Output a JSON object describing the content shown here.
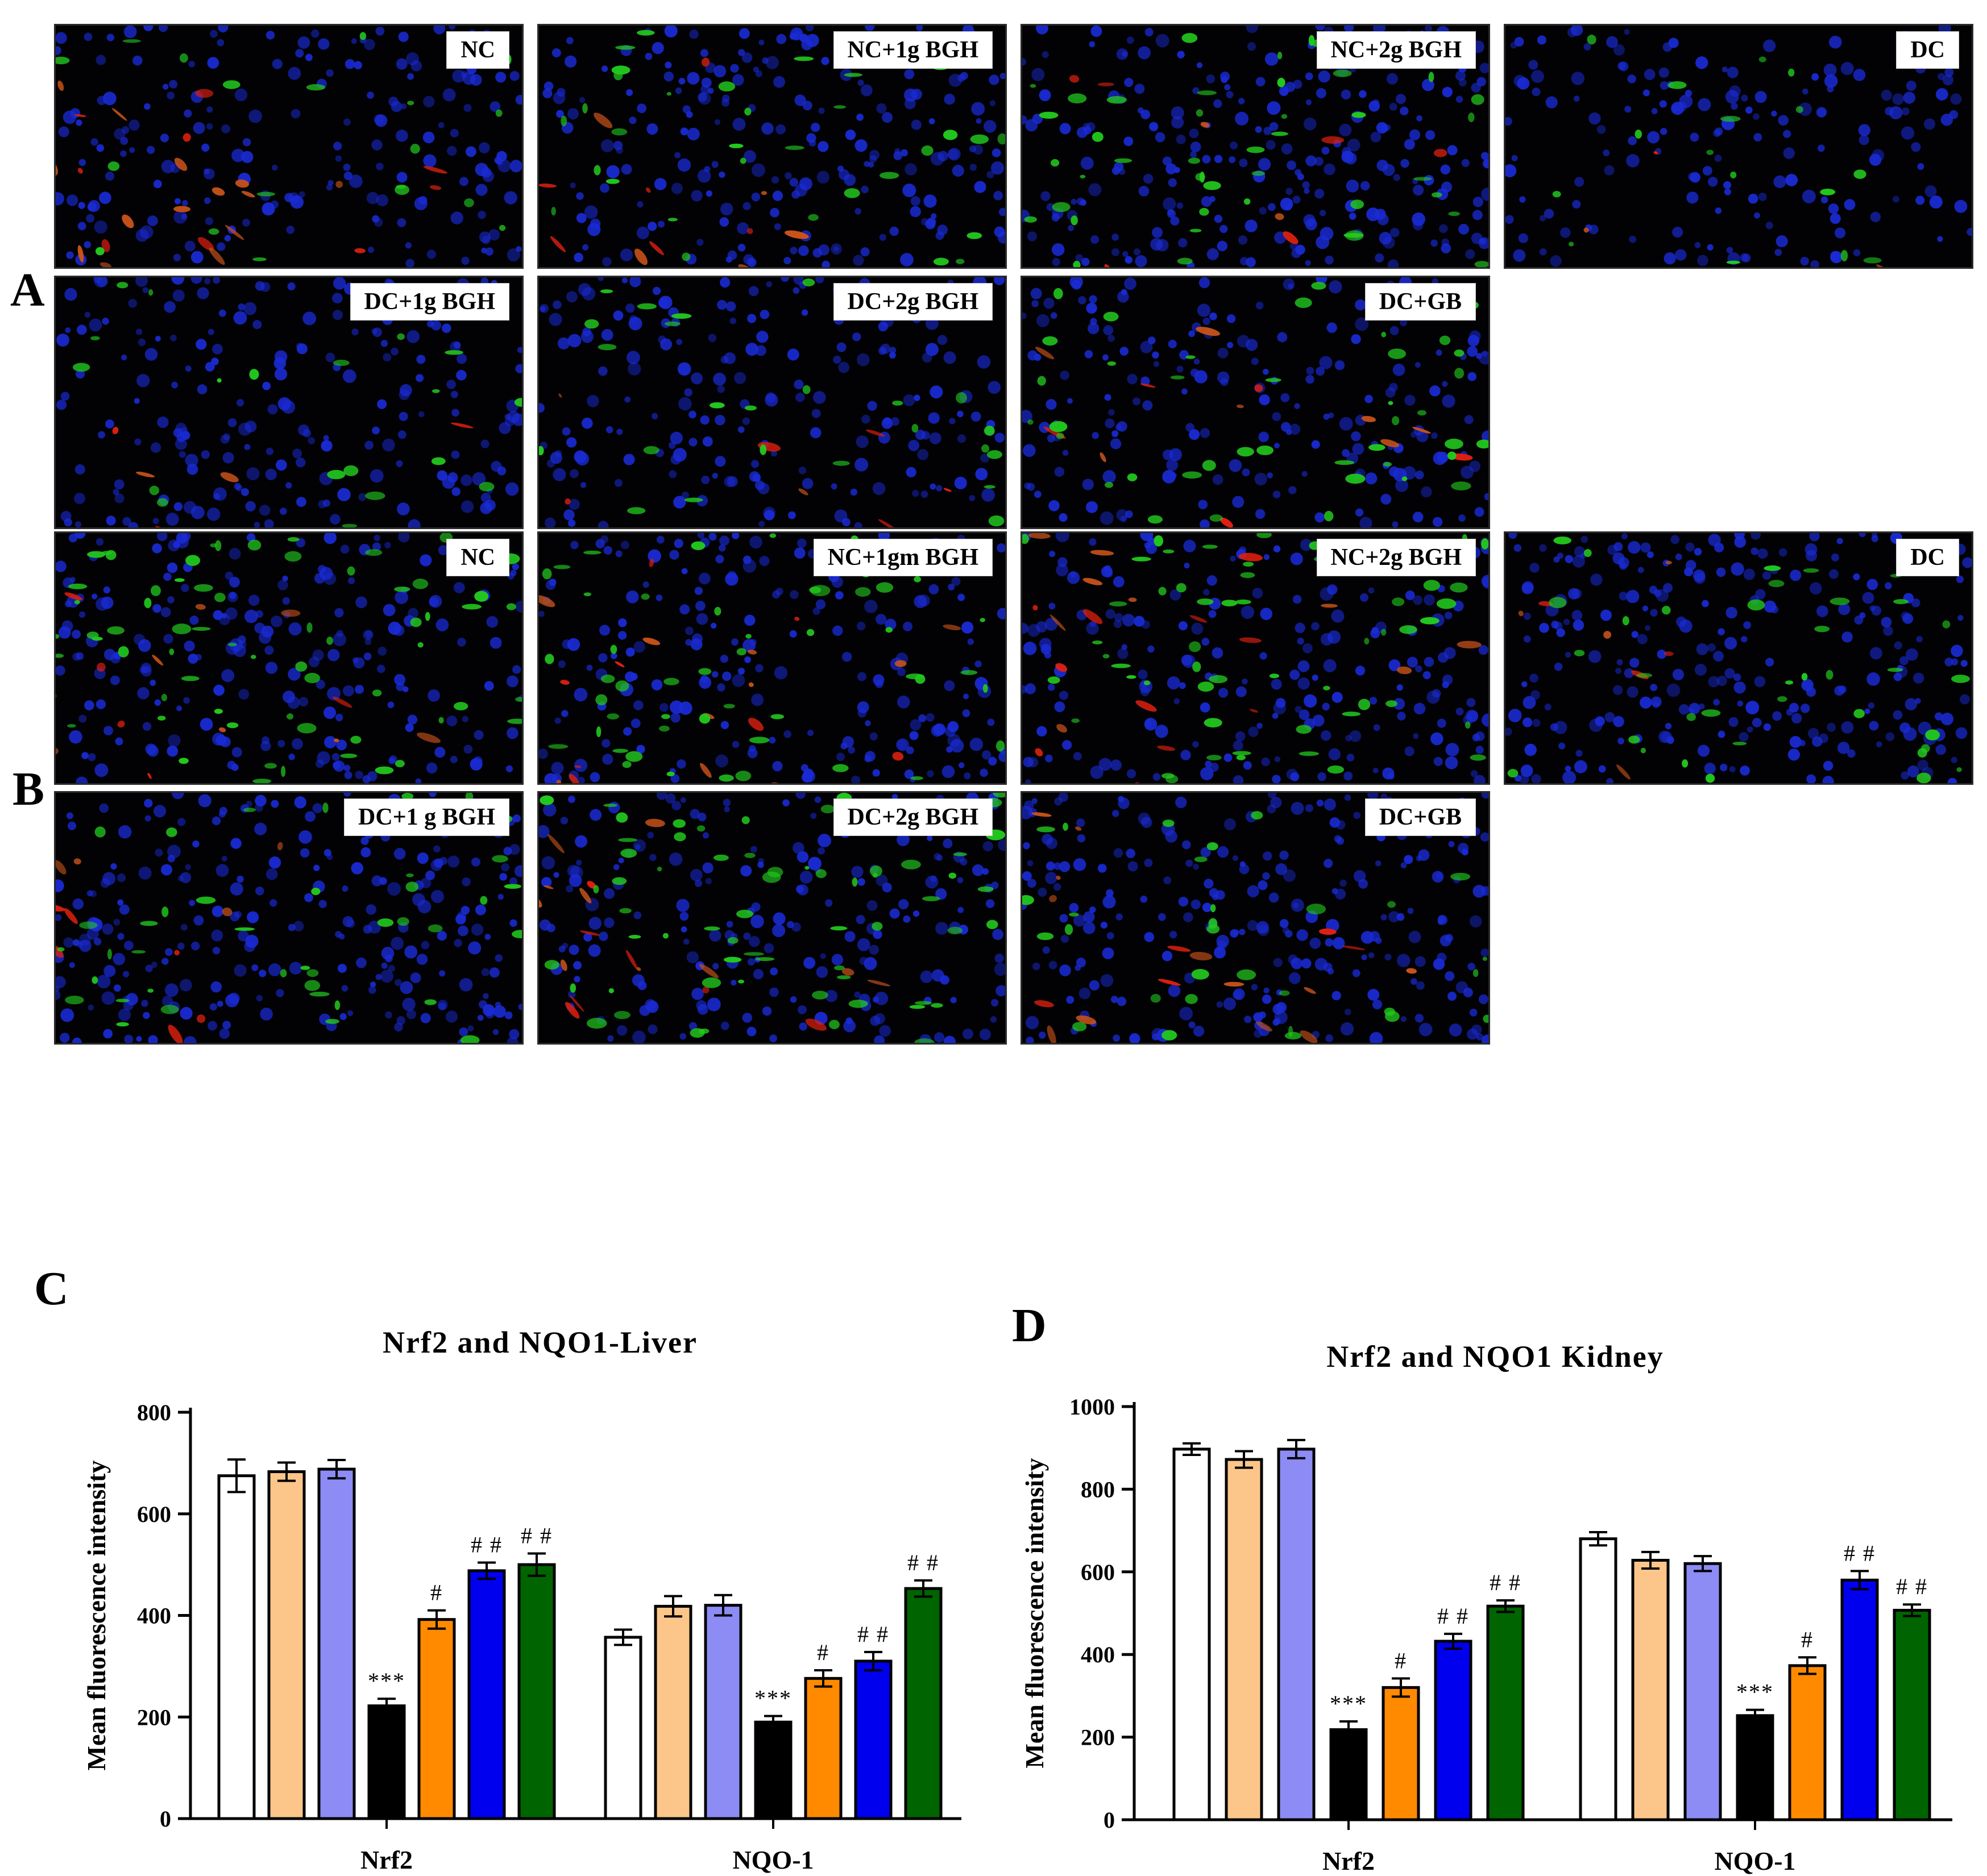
{
  "panels": {
    "A": "A",
    "B": "B",
    "C": "C",
    "D": "D"
  },
  "microscopy": {
    "A": [
      {
        "label": "NC",
        "r": 0.55,
        "g": 0.15,
        "b": 0.5
      },
      {
        "label": "NC+1g  BGH",
        "r": 0.45,
        "g": 0.35,
        "b": 0.6
      },
      {
        "label": "NC+2g  BGH",
        "r": 0.3,
        "g": 0.45,
        "b": 0.75
      },
      {
        "label": "DC",
        "r": 0.15,
        "g": 0.12,
        "b": 0.4
      },
      {
        "label": "DC+1g  BGH",
        "r": 0.2,
        "g": 0.15,
        "b": 0.55
      },
      {
        "label": "DC+2g  BGH",
        "r": 0.25,
        "g": 0.2,
        "b": 0.55
      },
      {
        "label": "DC+GB",
        "r": 0.4,
        "g": 0.4,
        "b": 0.55
      }
    ],
    "B": [
      {
        "label": "NC",
        "r": 0.75,
        "g": 0.7,
        "b": 0.6
      },
      {
        "label": "NC+1gm BGH",
        "r": 0.8,
        "g": 0.55,
        "b": 0.55
      },
      {
        "label": "NC+2g  BGH",
        "r": 0.7,
        "g": 0.6,
        "b": 0.6
      },
      {
        "label": "DC",
        "r": 0.35,
        "g": 0.35,
        "b": 0.75
      },
      {
        "label": "DC+1 g BGH",
        "r": 0.4,
        "g": 0.4,
        "b": 0.75
      },
      {
        "label": "DC+2g BGH",
        "r": 0.6,
        "g": 0.75,
        "b": 0.6
      },
      {
        "label": "DC+GB",
        "r": 0.45,
        "g": 0.3,
        "b": 0.75
      }
    ]
  },
  "chart_data": [
    {
      "type": "bar",
      "panel": "C",
      "title": "Nrf2 and NQO1-Liver",
      "ylabel": "Mean fluorescence intensity",
      "ylim": [
        0,
        800
      ],
      "yticks": [
        "0",
        "200",
        "400",
        "600",
        "800"
      ],
      "categories": [
        "Nrf2",
        "NQO-1"
      ],
      "bar_colors": [
        "#ffffff",
        "#fcc68a",
        "#8c8cf4",
        "#000000",
        "#ff8a00",
        "#0000ee",
        "#006400"
      ],
      "series": [
        {
          "values": [
            675,
            357
          ],
          "errors": [
            32,
            15
          ],
          "annotation": [
            "",
            ""
          ]
        },
        {
          "values": [
            683,
            418
          ],
          "errors": [
            18,
            20
          ],
          "annotation": [
            "",
            ""
          ]
        },
        {
          "values": [
            688,
            420
          ],
          "errors": [
            18,
            20
          ],
          "annotation": [
            "",
            ""
          ]
        },
        {
          "values": [
            222,
            190
          ],
          "errors": [
            14,
            12
          ],
          "annotation": [
            "***",
            "***"
          ]
        },
        {
          "values": [
            392,
            276
          ],
          "errors": [
            18,
            16
          ],
          "annotation": [
            "#",
            "#"
          ]
        },
        {
          "values": [
            488,
            310
          ],
          "errors": [
            16,
            18
          ],
          "annotation": [
            "# #",
            "# #"
          ]
        },
        {
          "values": [
            500,
            453
          ],
          "errors": [
            22,
            16
          ],
          "annotation": [
            "# #",
            "# #"
          ]
        }
      ]
    },
    {
      "type": "bar",
      "panel": "D",
      "title": "Nrf2 and NQO1 Kidney",
      "ylabel": "Mean fluorescence intensity",
      "ylim": [
        0,
        1000
      ],
      "yticks": [
        "0",
        "200",
        "400",
        "600",
        "800",
        "1000"
      ],
      "categories": [
        "Nrf2",
        "NQO-1"
      ],
      "bar_colors": [
        "#ffffff",
        "#fcc68a",
        "#8c8cf4",
        "#000000",
        "#ff8a00",
        "#0000ee",
        "#006400"
      ],
      "series": [
        {
          "values": [
            897,
            680
          ],
          "errors": [
            14,
            16
          ],
          "annotation": [
            "",
            ""
          ]
        },
        {
          "values": [
            872,
            628
          ],
          "errors": [
            20,
            20
          ],
          "annotation": [
            "",
            ""
          ]
        },
        {
          "values": [
            897,
            620
          ],
          "errors": [
            22,
            18
          ],
          "annotation": [
            "",
            ""
          ]
        },
        {
          "values": [
            218,
            252
          ],
          "errors": [
            20,
            14
          ],
          "annotation": [
            "***",
            "***"
          ]
        },
        {
          "values": [
            320,
            373
          ],
          "errors": [
            22,
            20
          ],
          "annotation": [
            "#",
            "#"
          ]
        },
        {
          "values": [
            432,
            580
          ],
          "errors": [
            18,
            22
          ],
          "annotation": [
            "# #",
            "# #"
          ]
        },
        {
          "values": [
            517,
            507
          ],
          "errors": [
            14,
            14
          ],
          "annotation": [
            "# #",
            "# #"
          ]
        }
      ]
    }
  ]
}
